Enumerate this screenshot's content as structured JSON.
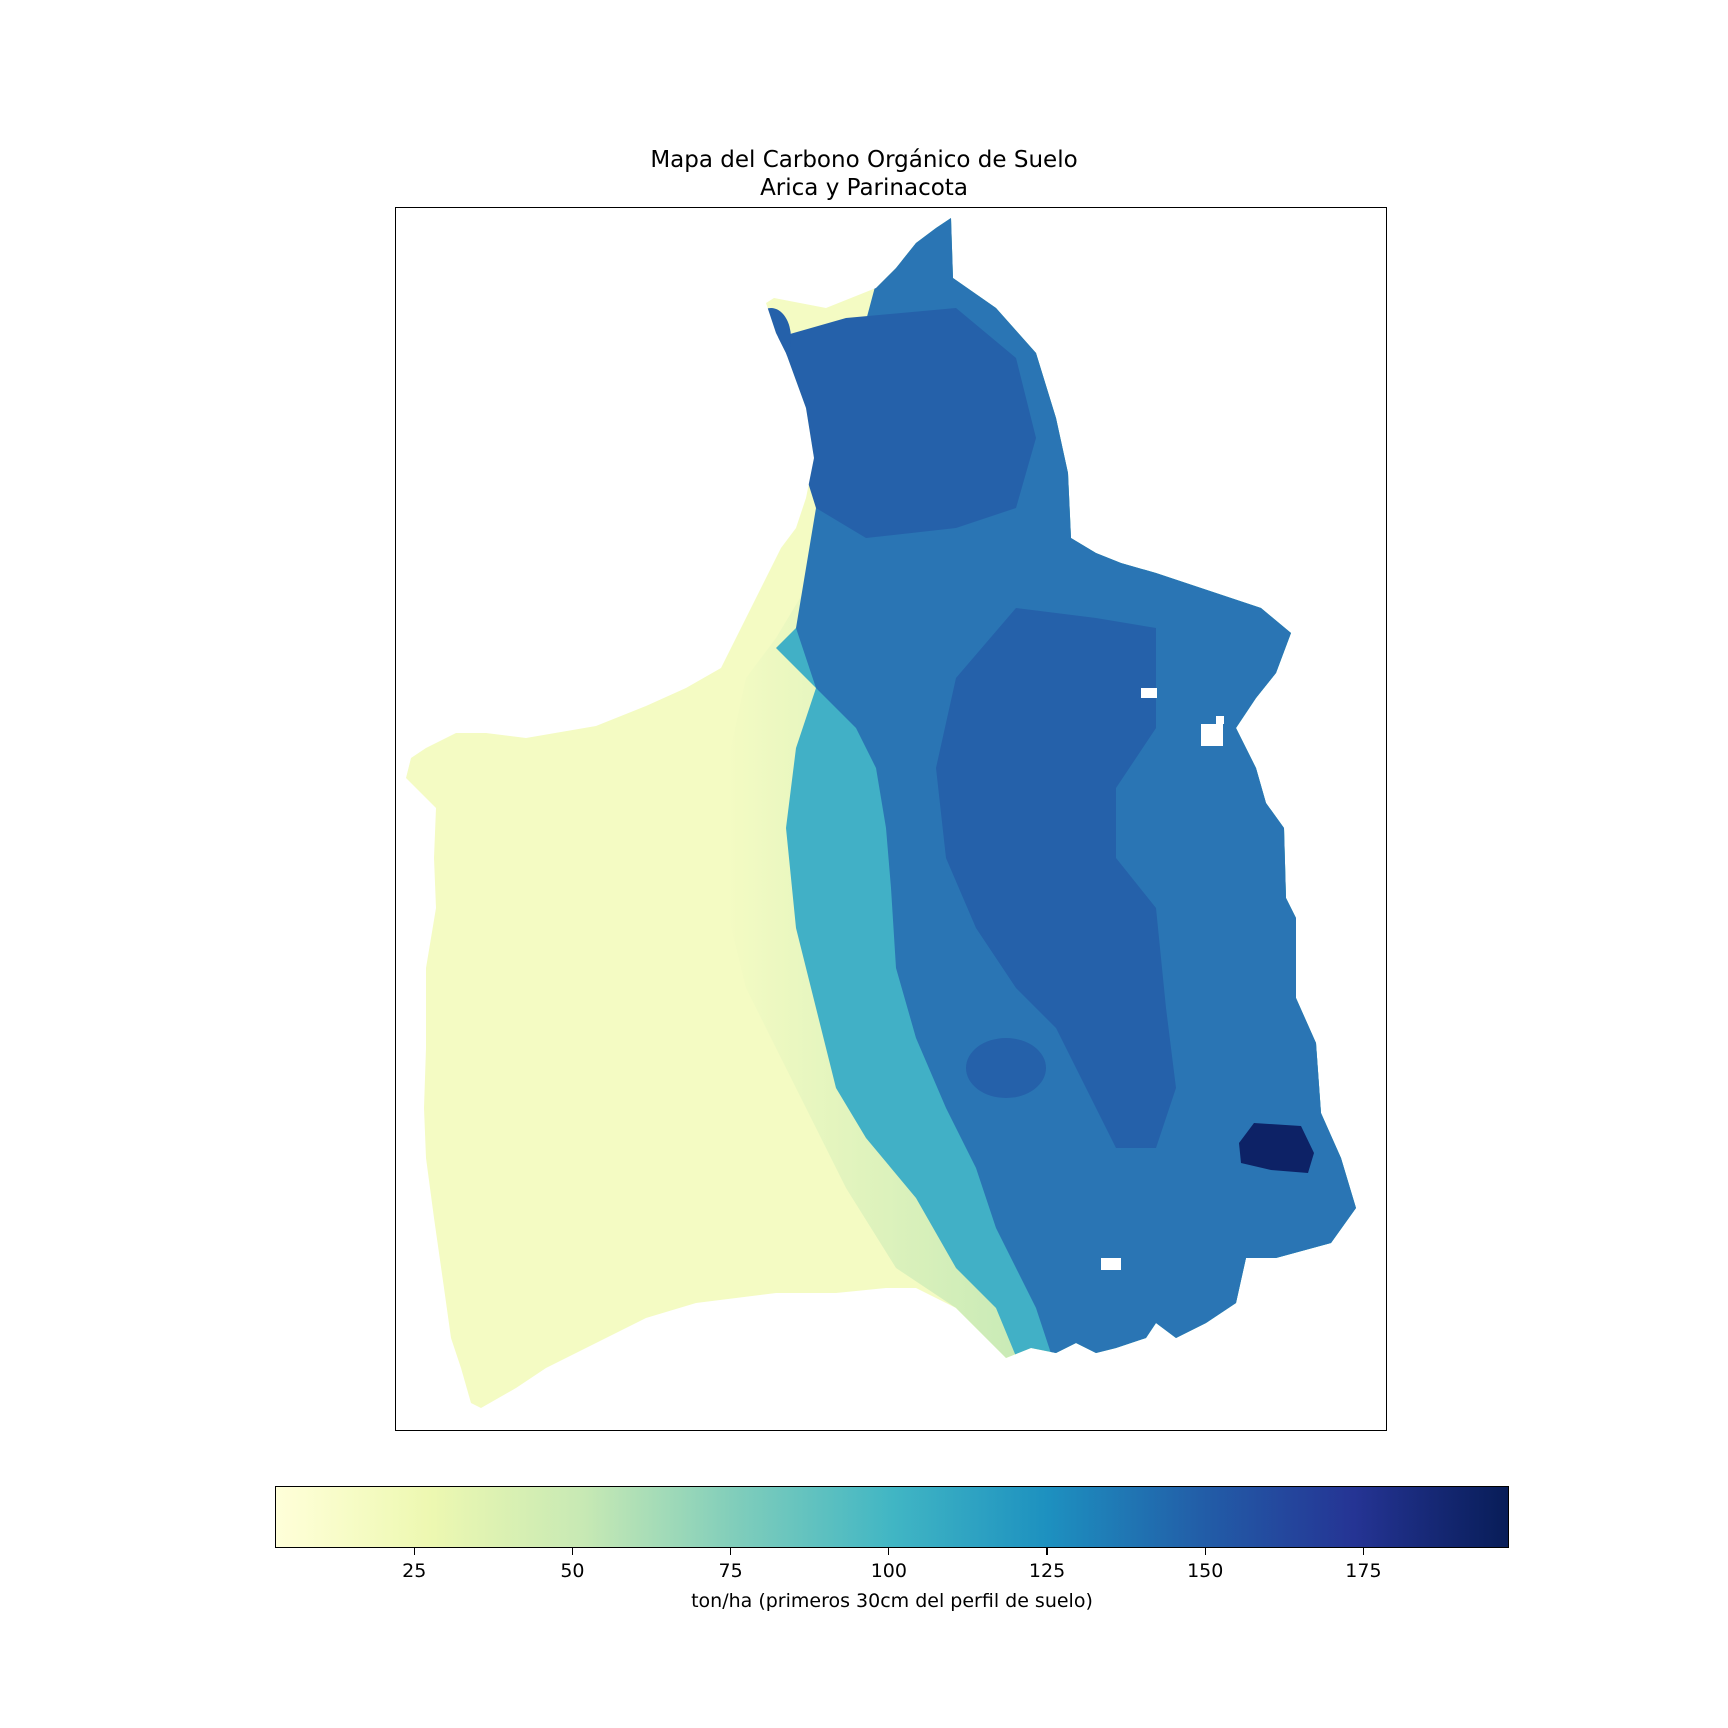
{
  "map": {
    "title": "Mapa del Carbono Orgánico de Suelo",
    "subtitle": "Arica y Parinacota",
    "colormap": [
      "#ffffd9",
      "#edf8b1",
      "#c7e9b4",
      "#7fcdbb",
      "#41b6c4",
      "#1d91c0",
      "#225ea8",
      "#253494",
      "#081d58"
    ],
    "colorbar": {
      "min": 3,
      "max": 198,
      "ticks": [
        "25",
        "50",
        "75",
        "100",
        "125",
        "150",
        "175"
      ],
      "tick_values": [
        25,
        50,
        75,
        100,
        125,
        150,
        175
      ],
      "label": "ton/ha (primeros 30cm del perfil de suelo)"
    },
    "zones": {
      "coastal_desert": {
        "color": "#f4fbc3",
        "value": 15
      },
      "slope_transition": {
        "color": "#c8eab6",
        "value": 60
      },
      "mid_elevation": {
        "color": "#41b0c6",
        "value": 105
      },
      "altiplano": {
        "color": "#2a75b4",
        "value": 135
      },
      "high_altiplano": {
        "color": "#2561aa",
        "value": 148
      },
      "max_zone": {
        "color": "#0d2266",
        "value": 190
      }
    }
  }
}
